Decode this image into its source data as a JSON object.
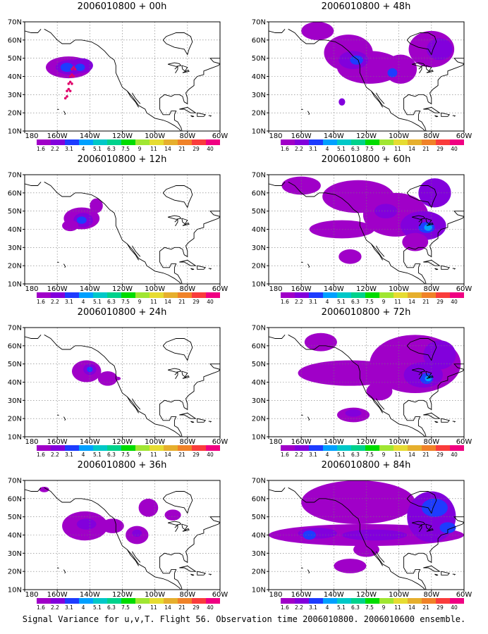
{
  "caption": "Signal Variance for u,v,T. Flight 56. Observation time 2006010800. 2006010600 ensemble.",
  "axes": {
    "lat_labels": [
      "70N",
      "60N",
      "50N",
      "40N",
      "30N",
      "20N",
      "10N"
    ],
    "lon_labels": [
      "180",
      "160W",
      "140W",
      "120W",
      "100W",
      "80W",
      "60W"
    ]
  },
  "colorbar": {
    "labels": [
      "1.6",
      "2.2",
      "3.1",
      "4",
      "5.1",
      "6.3",
      "7.5",
      "9",
      "11",
      "14",
      "21",
      "29",
      "40"
    ],
    "colors": [
      "#a000c8",
      "#8200dc",
      "#1e3cff",
      "#00a0ff",
      "#00c8c8",
      "#00d28c",
      "#00dc00",
      "#a0e632",
      "#e6dc32",
      "#e6af2d",
      "#f08228",
      "#fa3c3c",
      "#f00082"
    ]
  },
  "panels": [
    {
      "title": "2006010800 + 00h",
      "observations": true
    },
    {
      "title": "2006010800 + 48h"
    },
    {
      "title": "2006010800 + 12h"
    },
    {
      "title": "2006010800 + 60h"
    },
    {
      "title": "2006010800 + 24h"
    },
    {
      "title": "2006010800 + 72h"
    },
    {
      "title": "2006010800 + 36h"
    },
    {
      "title": "2006010800 + 84h"
    }
  ]
}
